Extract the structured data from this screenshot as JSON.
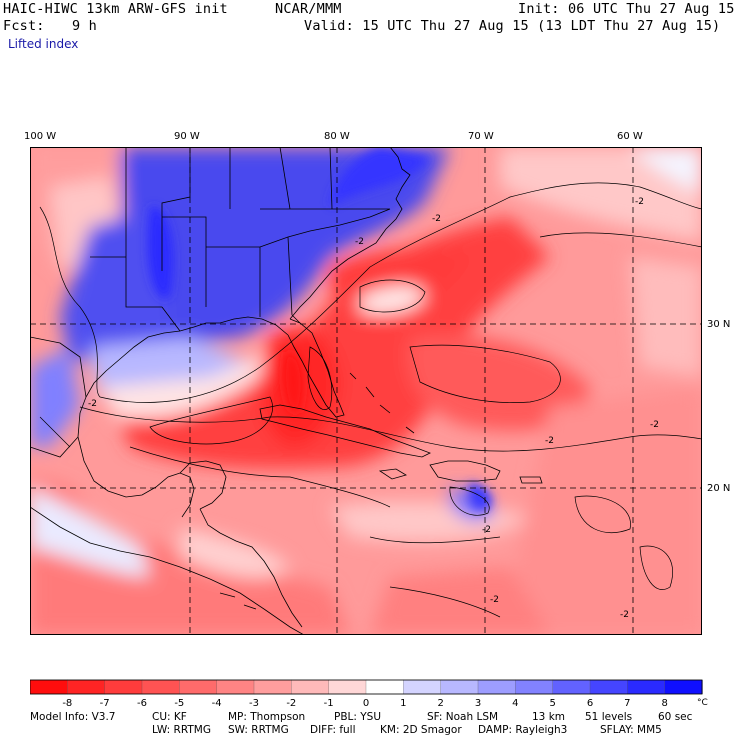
{
  "header": {
    "model_title": "HAIC-HIWC 13km ARW-GFS init",
    "org": "NCAR/MMM",
    "init": "Init: 06 UTC Thu 27 Aug 15",
    "fcst_label": "Fcst:",
    "fcst_value": "9 h",
    "valid": "Valid: 15 UTC Thu 27 Aug 15 (13 LDT Thu 27 Aug 15)",
    "field": "Lifted index"
  },
  "map": {
    "lon_labels": [
      "100 W",
      "90 W",
      "80 W",
      "70 W",
      "60 W"
    ],
    "lat_labels": [
      "30 N",
      "20 N"
    ],
    "contour_label": "-2",
    "colors": {
      "land_border": "#000000",
      "grid": "#000000"
    }
  },
  "colorbar": {
    "ticks": [
      "-8",
      "-7",
      "-6",
      "-5",
      "-4",
      "-3",
      "-2",
      "-1",
      "0",
      "1",
      "2",
      "3",
      "4",
      "5",
      "6",
      "7",
      "8"
    ],
    "unit": "°C",
    "colors": [
      "#ff0d0d",
      "#ff2424",
      "#ff3c3c",
      "#ff5353",
      "#ff6b6b",
      "#ff8484",
      "#ff9e9e",
      "#ffbaba",
      "#ffd7d7",
      "#ffffff",
      "#d4d4ff",
      "#b8b8ff",
      "#9d9dff",
      "#8282ff",
      "#6262ff",
      "#4545ff",
      "#2a2aff",
      "#0f0fff"
    ]
  },
  "footer": {
    "line1": [
      "Model Info: V3.7",
      "CU: KF",
      "MP: Thompson",
      "PBL: YSU",
      "SF: Noah LSM",
      "13 km",
      "51 levels",
      "60 sec"
    ],
    "line2": [
      "LW: RRTMG",
      "SW: RRTMG",
      "DIFF: full",
      "KM: 2D Smagor",
      "DAMP: Rayleigh3",
      "SFLAY: MM5"
    ]
  }
}
